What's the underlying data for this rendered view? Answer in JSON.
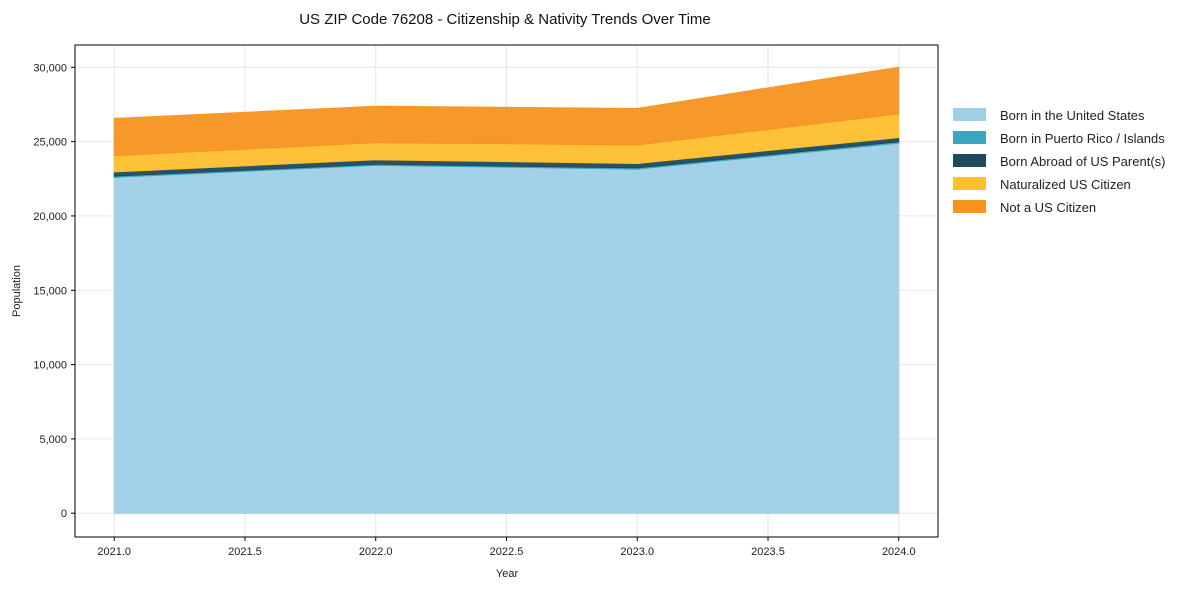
{
  "chart_data": {
    "type": "area",
    "stacked": true,
    "title": "US ZIP Code 76208 - Citizenship & Nativity Trends Over Time",
    "xlabel": "Year",
    "ylabel": "Population",
    "x": [
      2021,
      2022,
      2023,
      2024
    ],
    "xlim": [
      2020.85,
      2024.15
    ],
    "ylim": [
      -1600,
      31500
    ],
    "x_ticks": [
      2021.0,
      2021.5,
      2022.0,
      2022.5,
      2023.0,
      2023.5,
      2024.0
    ],
    "x_tick_labels": [
      "2021.0",
      "2021.5",
      "2022.0",
      "2022.5",
      "2023.0",
      "2023.5",
      "2024.0"
    ],
    "y_ticks": [
      0,
      5000,
      10000,
      15000,
      20000,
      25000,
      30000
    ],
    "y_tick_labels": [
      "0",
      "5,000",
      "10,000",
      "15,000",
      "20,000",
      "25,000",
      "30,000"
    ],
    "grid": true,
    "legend_position": "outside-right",
    "series": [
      {
        "name": "Born in the United States",
        "values": [
          22600,
          23400,
          23150,
          24900
        ],
        "color": "#9ecfe6"
      },
      {
        "name": "Born in Puerto Rico / Islands",
        "values": [
          80,
          80,
          80,
          90
        ],
        "color": "#3aa6c0"
      },
      {
        "name": "Born Abroad of US Parent(s)",
        "values": [
          280,
          300,
          300,
          280
        ],
        "color": "#1e4a5c"
      },
      {
        "name": "Naturalized US Citizen",
        "values": [
          1100,
          1150,
          1250,
          1600
        ],
        "color": "#fdbf2d"
      },
      {
        "name": "Not a US Citizen",
        "values": [
          2500,
          2450,
          2450,
          3130
        ],
        "color": "#f7941f"
      }
    ]
  }
}
